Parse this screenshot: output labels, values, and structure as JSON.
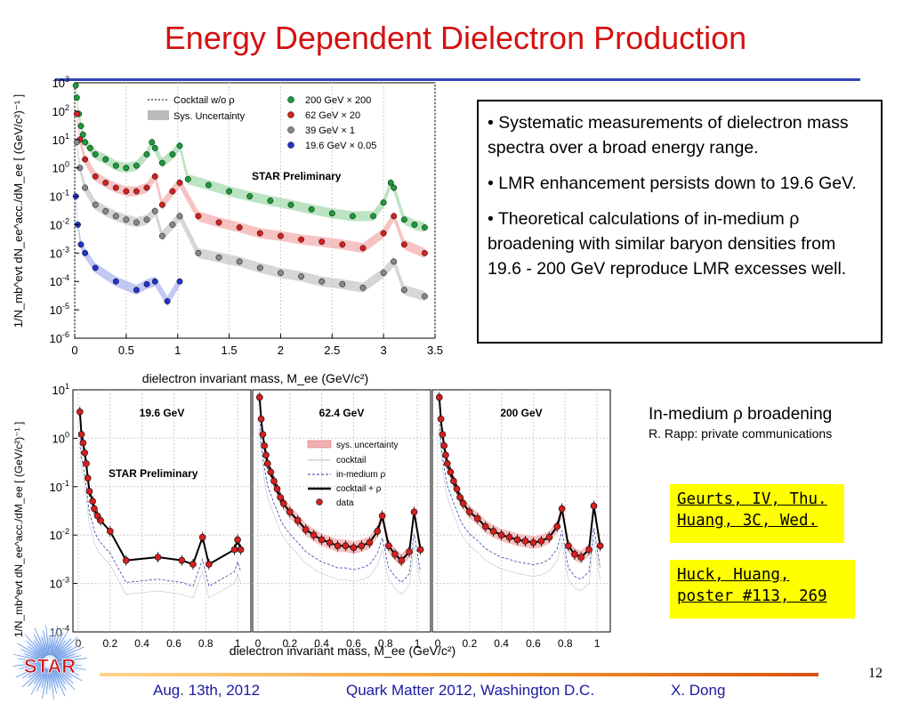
{
  "slide": {
    "title": "Energy Dependent Dielectron Production",
    "page_number": "12",
    "footer": {
      "date": "Aug. 13th, 2012",
      "conference": "Quark Matter 2012, Washington D.C.",
      "author": "X. Dong"
    },
    "logo_text": "STAR"
  },
  "bullets": [
    "• Systematic measurements of dielectron mass spectra over a broad energy range.",
    "• LMR enhancement persists down to 19.6 GeV.",
    "• Theoretical calculations of in-medium ρ broadening with similar baryon densities from 19.6 - 200 GeV reproduce LMR excesses well."
  ],
  "rapp_note": {
    "heading": "In-medium ρ broadening",
    "sub": "R. Rapp: private communications"
  },
  "references": [
    {
      "lines": [
        "Geurts, IV, Thu.",
        "Huang, 3C, Wed."
      ]
    },
    {
      "lines": [
        "Huck, Huang,",
        "poster #113, 269"
      ]
    }
  ],
  "chart_data": [
    {
      "type": "scatter",
      "title": "",
      "annotation": "STAR Preliminary",
      "xlabel": "dielectron invariant mass, M_ee (GeV/c²)",
      "ylabel": "1/N_mb^evt dN_ee^acc./dM_ee [ (GeV/c²)⁻¹ ]",
      "xlim": [
        0,
        3.5
      ],
      "ylim_log10": [
        -6,
        3
      ],
      "x_ticks": [
        "0",
        "0.5",
        "1",
        "1.5",
        "2",
        "2.5",
        "3",
        "3.5"
      ],
      "y_ticks": [
        "10^-6",
        "10^-5",
        "10^-4",
        "10^-3",
        "10^-2",
        "10^-1",
        "10^0",
        "10^1",
        "10^2",
        "10^3"
      ],
      "legend": {
        "position": "top",
        "entries": [
          "Cocktail w/o ρ",
          "Sys. Uncertainty",
          "200 GeV × 200",
          "62 GeV × 20",
          "39 GeV × 1",
          "19.6 GeV × 0.05"
        ]
      },
      "series": [
        {
          "name": "200 GeV × 200",
          "color": "#1a9b3a",
          "x": [
            0.01,
            0.02,
            0.04,
            0.06,
            0.08,
            0.1,
            0.15,
            0.2,
            0.3,
            0.4,
            0.5,
            0.6,
            0.7,
            0.75,
            0.78,
            0.85,
            0.95,
            1.02,
            1.1,
            1.3,
            1.5,
            1.7,
            1.9,
            2.1,
            2.3,
            2.5,
            2.7,
            2.9,
            3.0,
            3.07,
            3.1,
            3.2,
            3.3,
            3.4
          ],
          "y": [
            800,
            300,
            80,
            30,
            15,
            8,
            5,
            3,
            2,
            1.2,
            1.0,
            1.2,
            3,
            8,
            5,
            1.5,
            3,
            6,
            0.4,
            0.25,
            0.15,
            0.1,
            0.07,
            0.05,
            0.035,
            0.025,
            0.02,
            0.02,
            0.06,
            0.3,
            0.2,
            0.015,
            0.01,
            0.008
          ]
        },
        {
          "name": "62 GeV × 20",
          "color": "#d42020",
          "x": [
            0.02,
            0.05,
            0.1,
            0.2,
            0.3,
            0.4,
            0.5,
            0.6,
            0.7,
            0.78,
            0.85,
            0.95,
            1.02,
            1.2,
            1.4,
            1.6,
            1.8,
            2.0,
            2.2,
            2.4,
            2.6,
            2.8,
            3.0,
            3.1,
            3.2,
            3.4
          ],
          "y": [
            80,
            10,
            2,
            0.5,
            0.3,
            0.2,
            0.15,
            0.15,
            0.2,
            0.5,
            0.05,
            0.15,
            0.3,
            0.02,
            0.012,
            0.008,
            0.005,
            0.004,
            0.003,
            0.0025,
            0.002,
            0.0015,
            0.005,
            0.02,
            0.002,
            0.001
          ]
        },
        {
          "name": "39 GeV × 1",
          "color": "#888888",
          "x": [
            0.02,
            0.05,
            0.1,
            0.2,
            0.3,
            0.4,
            0.5,
            0.6,
            0.7,
            0.78,
            0.85,
            0.95,
            1.02,
            1.2,
            1.4,
            1.6,
            1.8,
            2.0,
            2.2,
            2.4,
            2.6,
            2.8,
            3.0,
            3.1,
            3.2,
            3.4
          ],
          "y": [
            8,
            1,
            0.2,
            0.05,
            0.03,
            0.02,
            0.015,
            0.012,
            0.015,
            0.03,
            0.004,
            0.01,
            0.02,
            0.001,
            0.0007,
            0.0005,
            0.0003,
            0.0002,
            0.00015,
            0.0001,
            8e-05,
            6e-05,
            0.0002,
            0.0005,
            5e-05,
            3e-05
          ]
        },
        {
          "name": "19.6 GeV × 0.05",
          "color": "#2233cc",
          "x": [
            0.01,
            0.03,
            0.06,
            0.1,
            0.2,
            0.4,
            0.6,
            0.7,
            0.78,
            0.9,
            1.02
          ],
          "y": [
            0.1,
            0.01,
            0.002,
            0.001,
            0.0003,
            0.0001,
            5e-05,
            8e-05,
            0.0001,
            2e-05,
            0.0001
          ]
        }
      ]
    },
    {
      "type": "scatter",
      "title": "",
      "annotation": "STAR Preliminary",
      "xlabel": "dielectron invariant mass, M_ee (GeV/c²)",
      "ylabel": "1/N_mb^evt dN_ee^acc./dM_ee [ (GeV/c²)⁻¹ ]",
      "ylim_log10": [
        -4,
        1
      ],
      "y_ticks": [
        "10^-4",
        "10^-3",
        "10^-2",
        "10^-1",
        "10^0",
        "10^1"
      ],
      "panels": [
        {
          "label": "19.6 GeV",
          "xlim": [
            0,
            1.05
          ],
          "x_ticks": [
            "0",
            "0.2",
            "0.4",
            "0.6",
            "0.8",
            "1"
          ],
          "x": [
            0.01,
            0.02,
            0.03,
            0.04,
            0.05,
            0.06,
            0.07,
            0.09,
            0.1,
            0.12,
            0.14,
            0.2,
            0.3,
            0.5,
            0.65,
            0.72,
            0.78,
            0.82,
            0.98,
            1.0,
            1.02
          ],
          "y": [
            3.5,
            1.2,
            0.8,
            0.5,
            0.3,
            0.15,
            0.08,
            0.05,
            0.035,
            0.025,
            0.02,
            0.012,
            0.003,
            0.0035,
            0.003,
            0.0025,
            0.009,
            0.0025,
            0.005,
            0.008,
            0.005
          ]
        },
        {
          "label": "62.4 GeV",
          "xlim": [
            0,
            1.05
          ],
          "x_ticks": [
            "0",
            "0.2",
            "0.4",
            "0.6",
            "0.8",
            "1"
          ],
          "x": [
            0.01,
            0.02,
            0.03,
            0.04,
            0.05,
            0.06,
            0.08,
            0.1,
            0.12,
            0.14,
            0.16,
            0.2,
            0.25,
            0.3,
            0.35,
            0.4,
            0.45,
            0.5,
            0.55,
            0.6,
            0.65,
            0.7,
            0.75,
            0.78,
            0.82,
            0.86,
            0.9,
            0.95,
            0.98,
            1.02
          ],
          "y": [
            7,
            2.5,
            1.2,
            0.7,
            0.45,
            0.3,
            0.2,
            0.13,
            0.09,
            0.06,
            0.045,
            0.03,
            0.02,
            0.013,
            0.01,
            0.008,
            0.007,
            0.006,
            0.006,
            0.0055,
            0.006,
            0.007,
            0.012,
            0.025,
            0.006,
            0.004,
            0.003,
            0.0045,
            0.03,
            0.005
          ]
        },
        {
          "label": "200 GeV",
          "xlim": [
            0,
            1.05
          ],
          "x_ticks": [
            "0",
            "0.2",
            "0.4",
            "0.6",
            "0.8",
            "1"
          ],
          "x": [
            0.01,
            0.02,
            0.03,
            0.04,
            0.05,
            0.06,
            0.08,
            0.1,
            0.12,
            0.14,
            0.16,
            0.2,
            0.25,
            0.3,
            0.35,
            0.4,
            0.45,
            0.5,
            0.55,
            0.6,
            0.65,
            0.7,
            0.75,
            0.78,
            0.82,
            0.86,
            0.9,
            0.95,
            0.98,
            1.02
          ],
          "y": [
            7,
            2.5,
            1.2,
            0.7,
            0.45,
            0.3,
            0.2,
            0.13,
            0.09,
            0.06,
            0.045,
            0.03,
            0.022,
            0.015,
            0.012,
            0.01,
            0.009,
            0.008,
            0.0075,
            0.007,
            0.0075,
            0.009,
            0.015,
            0.035,
            0.006,
            0.004,
            0.0035,
            0.005,
            0.04,
            0.006
          ]
        }
      ],
      "legend": {
        "position": "top-right",
        "entries": [
          "sys. uncertainty",
          "cocktail",
          "in-medium ρ",
          "cocktail + ρ",
          "data"
        ]
      }
    }
  ]
}
